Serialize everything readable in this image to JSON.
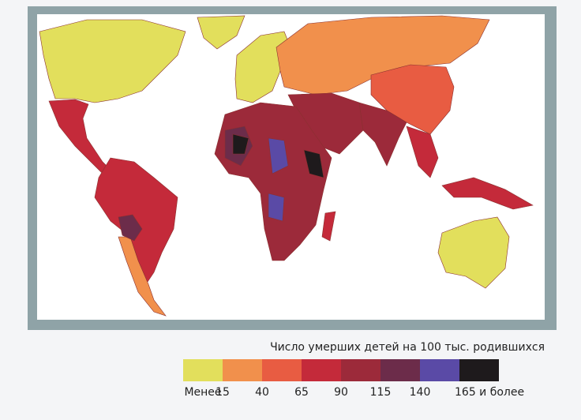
{
  "legend": {
    "title": "Число умерших детей на 100 тыс. родившихся",
    "items": [
      {
        "label": "Менее",
        "color": "#e2df5c"
      },
      {
        "label": "15",
        "color": "#f1904c"
      },
      {
        "label": "40",
        "color": "#e85c42"
      },
      {
        "label": "65",
        "color": "#c42a3a"
      },
      {
        "label": "90",
        "color": "#9c2a3a"
      },
      {
        "label": "115",
        "color": "#6c2c4a"
      },
      {
        "label": "140",
        "color": "#5a4aa6"
      },
      {
        "label": "165 и более",
        "color": "#1e1a1c"
      }
    ]
  }
}
